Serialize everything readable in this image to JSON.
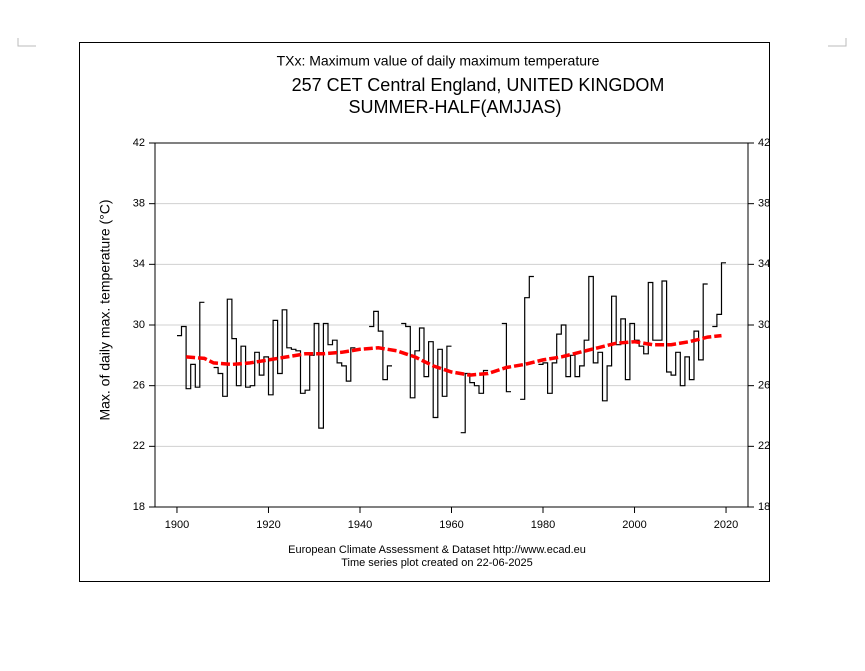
{
  "chart_data": {
    "type": "step",
    "title": "TXx: Maximum value of daily maximum temperature",
    "subtitle": "257 CET Central England, UNITED KINGDOM",
    "season": "SUMMER-HALF(AMJJAS)",
    "ylabel": "Max. of daily max. temperature (°C)",
    "footer": [
      "European Climate Assessment & Dataset  http://www.ecad.eu",
      "Time series plot created on 22-06-2025"
    ],
    "xlim": [
      1895.2,
      2024.8
    ],
    "xticks": [
      1900,
      1920,
      1940,
      1960,
      1980,
      2000,
      2020
    ],
    "ylim": [
      18,
      42
    ],
    "yticks": [
      18,
      22,
      26,
      30,
      34,
      38,
      42
    ],
    "grid": true,
    "series": [
      {
        "color": "#000000",
        "x": [
          1900,
          1901,
          1902,
          1903,
          1904,
          1905,
          1906,
          1907,
          1908,
          1909,
          1910,
          1911,
          1912,
          1913,
          1914,
          1915,
          1916,
          1917,
          1918,
          1919,
          1920,
          1921,
          1922,
          1923,
          1924,
          1925,
          1926,
          1927,
          1928,
          1929,
          1930,
          1931,
          1932,
          1933,
          1934,
          1935,
          1936,
          1937,
          1938,
          1939,
          1940,
          1941,
          1942,
          1943,
          1944,
          1945,
          1946,
          1947,
          1948,
          1949,
          1950,
          1951,
          1952,
          1953,
          1954,
          1955,
          1956,
          1957,
          1958,
          1959,
          1960,
          1961,
          1962,
          1963,
          1964,
          1965,
          1966,
          1967,
          1968,
          1969,
          1970,
          1971,
          1972,
          1973,
          1974,
          1975,
          1976,
          1977,
          1978,
          1979,
          1980,
          1981,
          1982,
          1983,
          1984,
          1985,
          1986,
          1987,
          1988,
          1989,
          1990,
          1991,
          1992,
          1993,
          1994,
          1995,
          1996,
          1997,
          1998,
          1999,
          2000,
          2001,
          2002,
          2003,
          2004,
          2005,
          2006,
          2007,
          2008,
          2009,
          2010,
          2011,
          2012,
          2013,
          2014,
          2015,
          2016,
          2017,
          2018,
          2019
        ],
        "values": [
          29.3,
          29.9,
          25.8,
          27.4,
          25.9,
          31.5,
          null,
          null,
          27.2,
          26.8,
          25.3,
          31.7,
          29.1,
          26.0,
          28.6,
          25.9,
          26.0,
          28.2,
          26.7,
          27.9,
          25.4,
          30.3,
          26.8,
          31.0,
          28.5,
          28.4,
          28.3,
          25.5,
          25.7,
          28.0,
          30.1,
          23.2,
          30.1,
          28.7,
          29.0,
          27.5,
          27.3,
          26.3,
          28.5,
          null,
          null,
          null,
          29.9,
          30.9,
          29.6,
          26.4,
          27.3,
          null,
          null,
          30.1,
          29.9,
          25.2,
          28.3,
          29.8,
          26.6,
          28.9,
          23.9,
          28.4,
          25.3,
          28.6,
          null,
          null,
          22.9,
          26.8,
          26.2,
          26.0,
          25.5,
          27.0,
          null,
          null,
          null,
          30.1,
          25.6,
          null,
          null,
          25.1,
          31.8,
          33.2,
          null,
          27.4,
          27.5,
          25.5,
          27.5,
          29.4,
          30.0,
          26.6,
          28.0,
          26.6,
          27.3,
          29.0,
          33.2,
          27.5,
          28.2,
          25.0,
          27.3,
          31.9,
          28.7,
          30.4,
          26.4,
          30.1,
          29.0,
          28.6,
          28.1,
          32.8,
          29.0,
          29.0,
          32.9,
          26.9,
          26.7,
          28.2,
          26.0,
          27.9,
          26.4,
          29.6,
          27.7,
          32.7,
          null,
          29.9,
          30.7,
          34.1
        ]
      },
      {
        "color": "#ff0000",
        "x": [
          1902,
          1906,
          1908,
          1912,
          1916,
          1920,
          1924,
          1928,
          1932,
          1936,
          1940,
          1944,
          1948,
          1952,
          1956,
          1960,
          1964,
          1968,
          1972,
          1976,
          1980,
          1984,
          1988,
          1992,
          1996,
          2000,
          2004,
          2008,
          2012,
          2016,
          2019
        ],
        "values": [
          27.9,
          27.8,
          27.5,
          27.4,
          27.5,
          27.7,
          27.9,
          28.1,
          28.1,
          28.2,
          28.4,
          28.5,
          28.3,
          27.9,
          27.3,
          26.9,
          26.7,
          26.8,
          27.2,
          27.4,
          27.7,
          27.9,
          28.2,
          28.5,
          28.8,
          28.9,
          28.7,
          28.7,
          28.9,
          29.2,
          29.3
        ]
      }
    ]
  }
}
